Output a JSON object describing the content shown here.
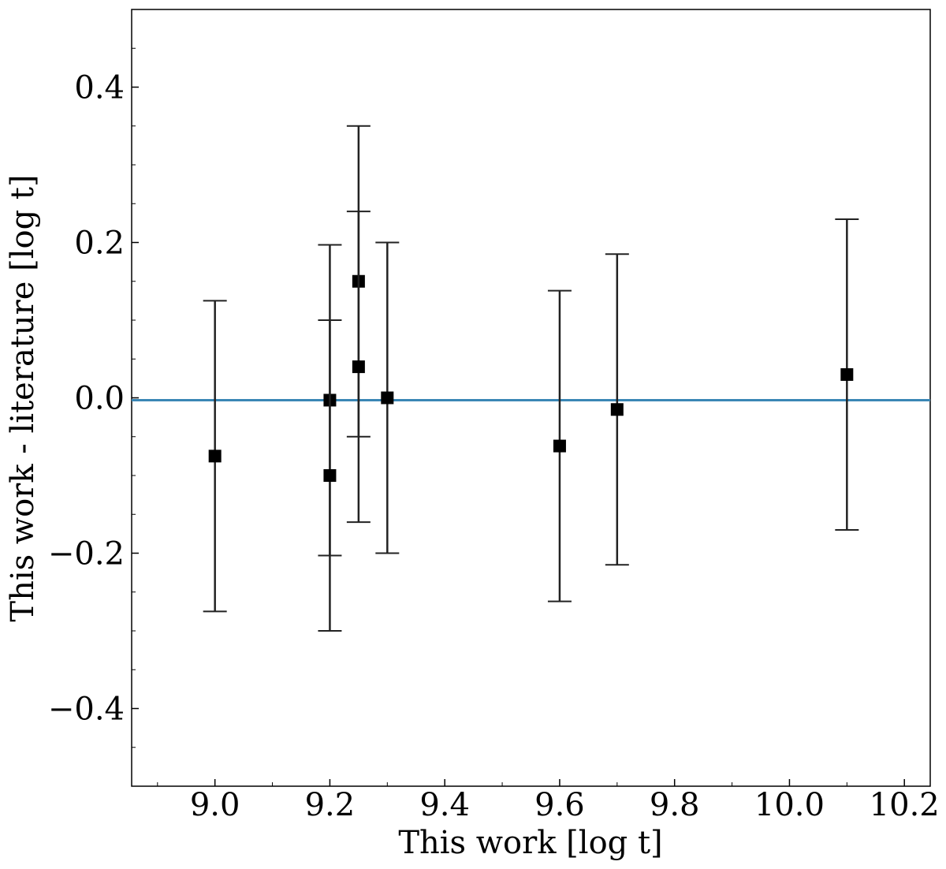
{
  "chart_data": {
    "type": "scatter",
    "title": "",
    "xlabel": "This work [log t]",
    "ylabel": "This work - literature [log t]",
    "xlim": [
      8.855,
      10.245
    ],
    "ylim": [
      -0.5,
      0.5
    ],
    "x_ticks": [
      9.0,
      9.2,
      9.4,
      9.6,
      9.8,
      10.0,
      10.2
    ],
    "x_tick_labels": [
      "9.0",
      "9.2",
      "9.4",
      "9.6",
      "9.8",
      "10.0",
      "10.2"
    ],
    "y_ticks": [
      -0.4,
      -0.2,
      0.0,
      0.2,
      0.4
    ],
    "y_tick_labels": [
      "−0.4",
      "−0.2",
      "0.0",
      "0.2",
      "0.4"
    ],
    "grid": false,
    "reference_line": {
      "y": -0.003,
      "color": "#3a86b5"
    },
    "marker_color": "#000000",
    "points": [
      {
        "x": 9.0,
        "y": -0.075,
        "yerr_low": -0.275,
        "yerr_high": 0.125
      },
      {
        "x": 9.2,
        "y": -0.003,
        "yerr_low": -0.203,
        "yerr_high": 0.197
      },
      {
        "x": 9.2,
        "y": -0.1,
        "yerr_low": -0.3,
        "yerr_high": 0.1
      },
      {
        "x": 9.25,
        "y": 0.15,
        "yerr_low": -0.05,
        "yerr_high": 0.35
      },
      {
        "x": 9.25,
        "y": 0.04,
        "yerr_low": -0.16,
        "yerr_high": 0.24
      },
      {
        "x": 9.3,
        "y": 0.0,
        "yerr_low": -0.2,
        "yerr_high": 0.2
      },
      {
        "x": 9.6,
        "y": -0.062,
        "yerr_low": -0.262,
        "yerr_high": 0.138
      },
      {
        "x": 9.7,
        "y": -0.015,
        "yerr_low": -0.215,
        "yerr_high": 0.185
      },
      {
        "x": 10.1,
        "y": 0.03,
        "yerr_low": -0.17,
        "yerr_high": 0.23
      }
    ]
  }
}
